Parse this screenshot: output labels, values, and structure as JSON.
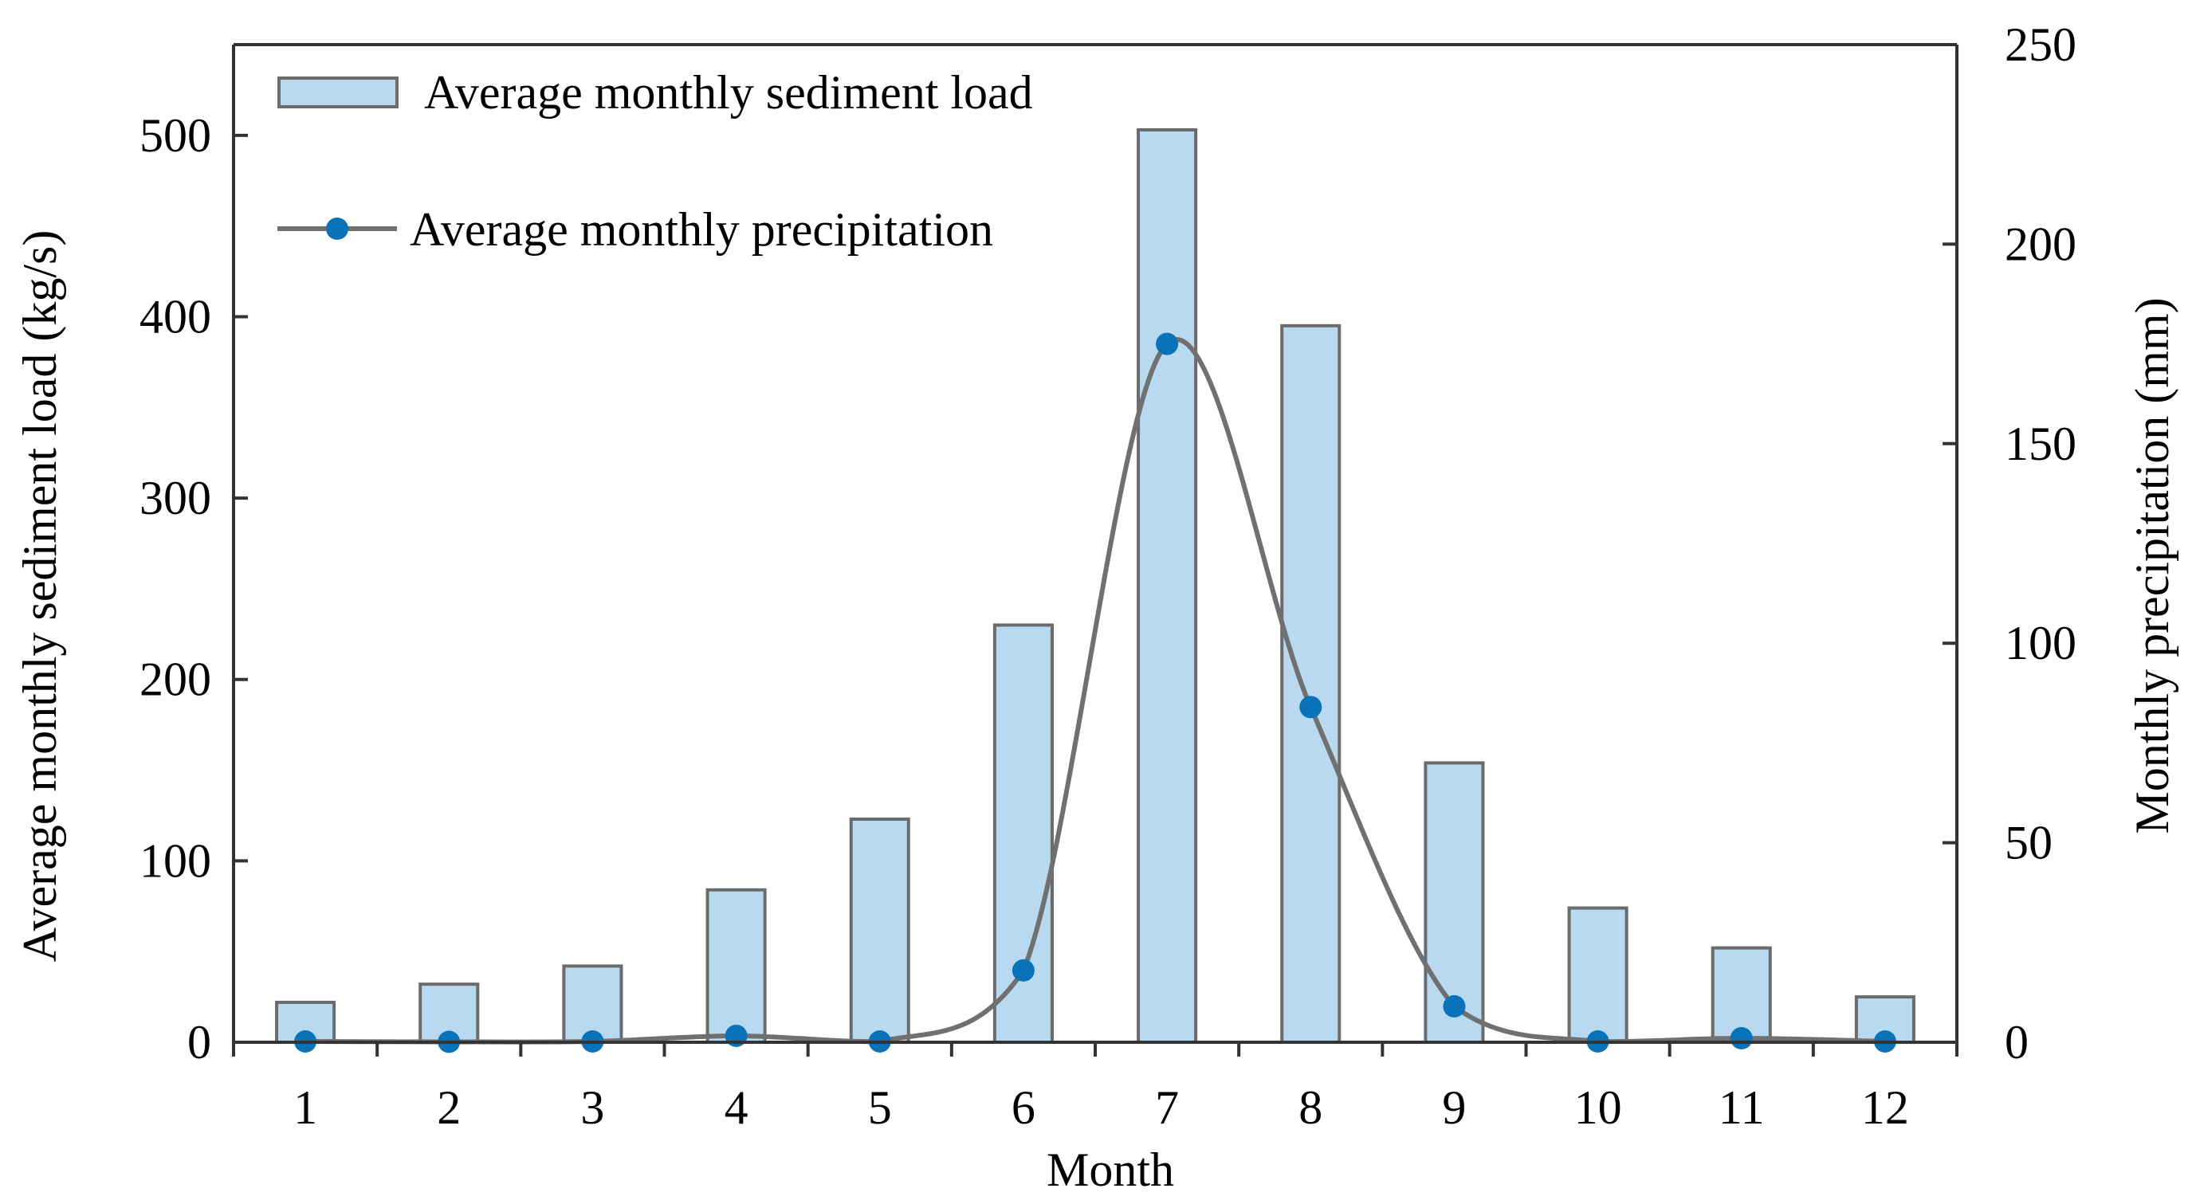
{
  "chart_data": {
    "type": "bar+line",
    "categories": [
      "1",
      "2",
      "3",
      "4",
      "5",
      "6",
      "7",
      "8",
      "9",
      "10",
      "11",
      "12"
    ],
    "series": [
      {
        "name": "Average monthly sediment load",
        "kind": "bar",
        "axis": "left",
        "unit": "kg/s",
        "values": [
          22,
          32,
          42,
          84,
          123,
          230,
          503,
          395,
          154,
          74,
          52,
          25
        ]
      },
      {
        "name": "Average monthly precipitation",
        "kind": "line",
        "axis": "right",
        "unit": "mm",
        "values": [
          0.2,
          0.1,
          0.2,
          1.6,
          0.2,
          18,
          175,
          84,
          9,
          0.2,
          1,
          0.2
        ]
      }
    ],
    "xlabel": "Month",
    "ylabel_left": "Average monthly sediment load (kg/s)",
    "ylabel_right": "Monthly precipitation (mm)",
    "ylim_left": [
      0,
      550
    ],
    "ylim_right": [
      0,
      250
    ],
    "yticks_left": [
      0,
      100,
      200,
      300,
      400,
      500
    ],
    "yticks_right": [
      0,
      50,
      100,
      150,
      200,
      250
    ],
    "legend": [
      {
        "label": "Average monthly sediment load",
        "kind": "bar"
      },
      {
        "label": "Average monthly precipitation",
        "kind": "line"
      }
    ],
    "legend_position": "top-left",
    "grid": false,
    "colors": {
      "bar_fill": "#b8d9f0",
      "bar_stroke": "#6b6b6b",
      "line": "#707070",
      "marker": "#0a72b8",
      "axis": "#333333"
    }
  }
}
